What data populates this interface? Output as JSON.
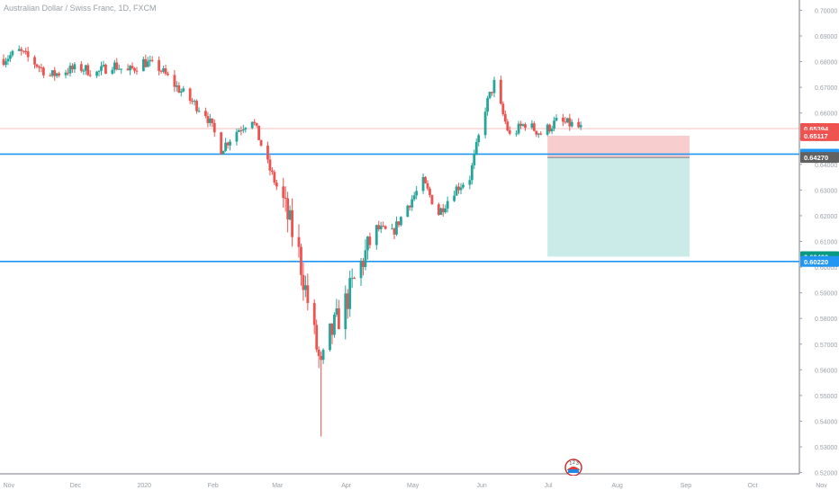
{
  "header": {
    "symbol_label": "Australian Dollar / Swiss Franc, 1D, FXCM"
  },
  "colors": {
    "up": "#26a69a",
    "down": "#ef5350",
    "line_blue": "#2196f3",
    "price_line": "#ef5350",
    "risk_fill": "#f7cdcd",
    "reward_fill": "#cbebe8",
    "axis_text": "#9aa0a6",
    "grid": "#e0e3eb"
  },
  "chart_data": {
    "type": "candlestick",
    "title": "Australian Dollar / Swiss Franc, 1D, FXCM",
    "y_axis": {
      "ticks": [
        "0.70000",
        "0.69000",
        "0.68000",
        "0.67000",
        "0.66000",
        "0.65000",
        "0.64000",
        "0.63000",
        "0.62000",
        "0.61000",
        "0.60000",
        "0.59000",
        "0.58000",
        "0.57000",
        "0.56000",
        "0.55000",
        "0.54000",
        "0.53000",
        "0.52000"
      ],
      "range": [
        0.5195,
        0.704
      ]
    },
    "x_axis": {
      "labels": [
        "Nov",
        "Dec",
        "2020",
        "Feb",
        "Mar",
        "Apr",
        "May",
        "Jun",
        "Jul",
        "Aug",
        "Sep",
        "Oct",
        "Nov"
      ]
    },
    "price_labels": [
      {
        "value": "0.65394",
        "role": "current-price",
        "color": "#ef5350"
      },
      {
        "value": "0.65117",
        "role": "stop-loss",
        "color": "#ef5350"
      },
      {
        "value": "0.64398",
        "role": "resistance-line",
        "color": "#2196f3"
      },
      {
        "value": "0.64270",
        "role": "entry",
        "color": "#616161"
      },
      {
        "value": "0.60406",
        "role": "take-profit",
        "color": "#089981"
      },
      {
        "value": "0.60220",
        "role": "support-line",
        "color": "#2196f3"
      }
    ],
    "horizontal_lines": [
      {
        "value": 0.64398,
        "color": "#2196f3"
      },
      {
        "value": 0.6022,
        "color": "#2196f3"
      }
    ],
    "position_tool": {
      "entry": 0.6427,
      "stop": 0.65117,
      "target": 0.60406,
      "start_date": "2020-06-29",
      "end_date": "2020-09-01"
    },
    "series_anchor": {
      "start_date": "2019-10-28",
      "end_date": "2020-07-14"
    },
    "waypoints": [
      [
        "2019-10-28",
        0.681
      ],
      [
        "2019-11-04",
        0.684
      ],
      [
        "2019-11-11",
        0.6795
      ],
      [
        "2019-11-18",
        0.6745
      ],
      [
        "2019-11-25",
        0.6765
      ],
      [
        "2019-12-02",
        0.6775
      ],
      [
        "2019-12-09",
        0.6755
      ],
      [
        "2019-12-16",
        0.679
      ],
      [
        "2019-12-23",
        0.676
      ],
      [
        "2019-12-30",
        0.68
      ],
      [
        "2020-01-06",
        0.6775
      ],
      [
        "2020-01-13",
        0.671
      ],
      [
        "2020-01-20",
        0.665
      ],
      [
        "2020-01-27",
        0.66
      ],
      [
        "2020-02-03",
        0.646
      ],
      [
        "2020-02-10",
        0.653
      ],
      [
        "2020-02-17",
        0.658
      ],
      [
        "2020-02-24",
        0.64
      ],
      [
        "2020-03-02",
        0.625
      ],
      [
        "2020-03-09",
        0.605
      ],
      [
        "2020-03-16",
        0.573
      ],
      [
        "2020-03-19",
        0.56
      ],
      [
        "2020-03-23",
        0.573
      ],
      [
        "2020-03-30",
        0.586
      ],
      [
        "2020-04-06",
        0.601
      ],
      [
        "2020-04-13",
        0.615
      ],
      [
        "2020-04-20",
        0.613
      ],
      [
        "2020-04-27",
        0.624
      ],
      [
        "2020-05-04",
        0.633
      ],
      [
        "2020-05-11",
        0.621
      ],
      [
        "2020-05-18",
        0.63
      ],
      [
        "2020-05-25",
        0.635
      ],
      [
        "2020-06-01",
        0.662
      ],
      [
        "2020-06-05",
        0.6715
      ],
      [
        "2020-06-08",
        0.662
      ],
      [
        "2020-06-12",
        0.651
      ],
      [
        "2020-06-19",
        0.656
      ],
      [
        "2020-06-26",
        0.652
      ],
      [
        "2020-07-03",
        0.6565
      ],
      [
        "2020-07-10",
        0.6555
      ],
      [
        "2020-07-14",
        0.6539
      ]
    ],
    "low_extreme": {
      "date": "2020-03-19",
      "value": 0.534
    },
    "grid": false,
    "legend": "none"
  }
}
